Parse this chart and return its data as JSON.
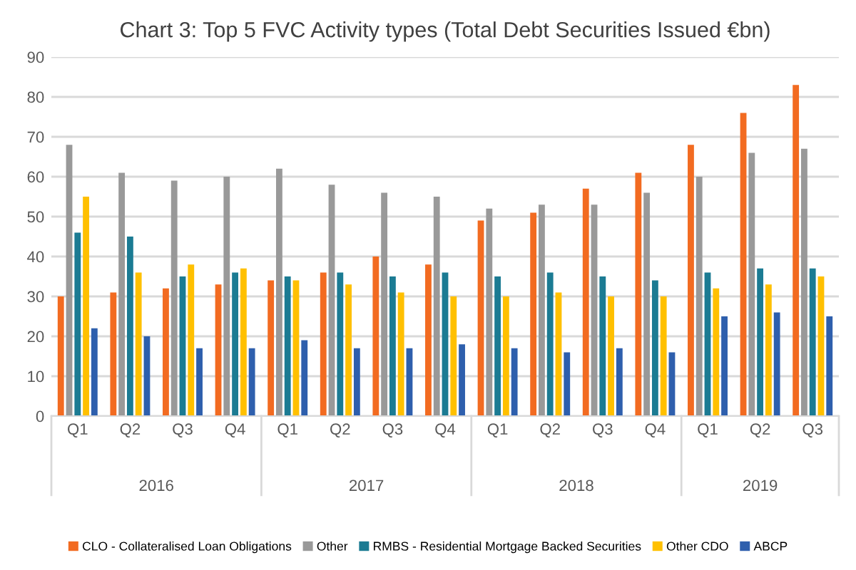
{
  "chart_data": {
    "type": "bar",
    "title": "Chart 3: Top 5 FVC Activity types (Total Debt Securities Issued €bn)",
    "categories": [
      "Q1",
      "Q2",
      "Q3",
      "Q4",
      "Q1",
      "Q2",
      "Q3",
      "Q4",
      "Q1",
      "Q2",
      "Q3",
      "Q4",
      "Q1",
      "Q2",
      "Q3"
    ],
    "annotations": [
      "2016",
      "2017",
      "2018",
      "2019"
    ],
    "series": [
      {
        "name": "CLO - Collateralised Loan Obligations",
        "color": "#f26b21",
        "values": [
          30,
          31,
          32,
          33,
          34,
          36,
          40,
          38,
          49,
          51,
          57,
          61,
          68,
          76,
          83
        ]
      },
      {
        "name": "Other",
        "color": "#999999",
        "values": [
          68,
          61,
          59,
          60,
          62,
          58,
          56,
          55,
          52,
          53,
          53,
          56,
          60,
          66,
          67
        ]
      },
      {
        "name": "RMBS - Residential Mortgage Backed Securities",
        "color": "#1b7b93",
        "values": [
          46,
          45,
          35,
          36,
          35,
          36,
          35,
          36,
          35,
          36,
          35,
          34,
          36,
          37,
          37
        ]
      },
      {
        "name": "Other CDO",
        "color": "#ffc000",
        "values": [
          55,
          36,
          38,
          37,
          34,
          33,
          31,
          30,
          30,
          31,
          30,
          30,
          32,
          33,
          35
        ]
      },
      {
        "name": "ABCP",
        "color": "#2e5fad",
        "values": [
          22,
          20,
          17,
          17,
          19,
          17,
          17,
          18,
          17,
          16,
          17,
          16,
          25,
          26,
          25
        ]
      }
    ],
    "ylim": [
      0,
      90
    ],
    "yticks": [
      0,
      10,
      20,
      30,
      40,
      50,
      60,
      70,
      80,
      90
    ],
    "grid": "y",
    "legend": "bottom"
  }
}
